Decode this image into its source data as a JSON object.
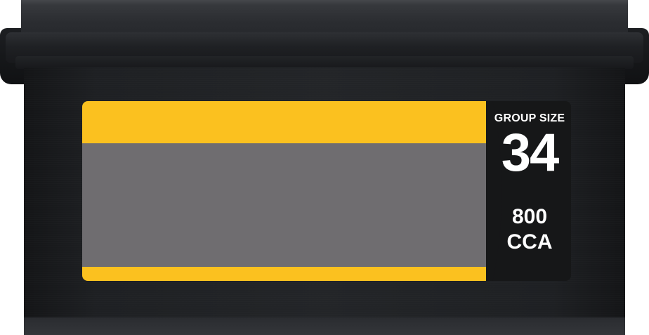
{
  "battery": {
    "label": {
      "group_size_caption": "GROUP SIZE",
      "group_size_value": "34",
      "cca_value": "800",
      "cca_unit": "CCA"
    },
    "colors": {
      "accent_yellow": "#fbc11f",
      "panel_gray": "#6f6d70",
      "label_black": "#161718",
      "case_dark": "#232528"
    }
  }
}
